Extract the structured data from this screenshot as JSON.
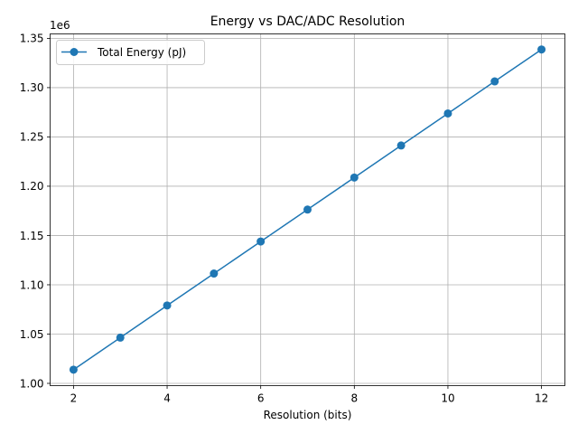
{
  "chart_data": {
    "type": "line",
    "title": "Energy vs DAC/ADC Resolution",
    "xlabel": "Resolution (bits)",
    "ylabel": "",
    "y_offset_label": "1e6",
    "xlim": [
      1.5,
      12.5
    ],
    "ylim": [
      0.9977,
      1.3545
    ],
    "xticks": [
      2,
      4,
      6,
      8,
      10,
      12
    ],
    "yticks": [
      1.0,
      1.05,
      1.1,
      1.15,
      1.2,
      1.25,
      1.3,
      1.35
    ],
    "grid": true,
    "legend_position": "upper-left",
    "series": [
      {
        "name": "Total Energy (pJ)",
        "color": "#1f77b4",
        "marker": "circle",
        "x": [
          2,
          3,
          4,
          5,
          6,
          7,
          8,
          9,
          10,
          11,
          12
        ],
        "y": [
          1.0139,
          1.0464,
          1.079,
          1.1114,
          1.1439,
          1.1763,
          1.2088,
          1.2413,
          1.2738,
          1.3063,
          1.3387
        ]
      }
    ]
  }
}
